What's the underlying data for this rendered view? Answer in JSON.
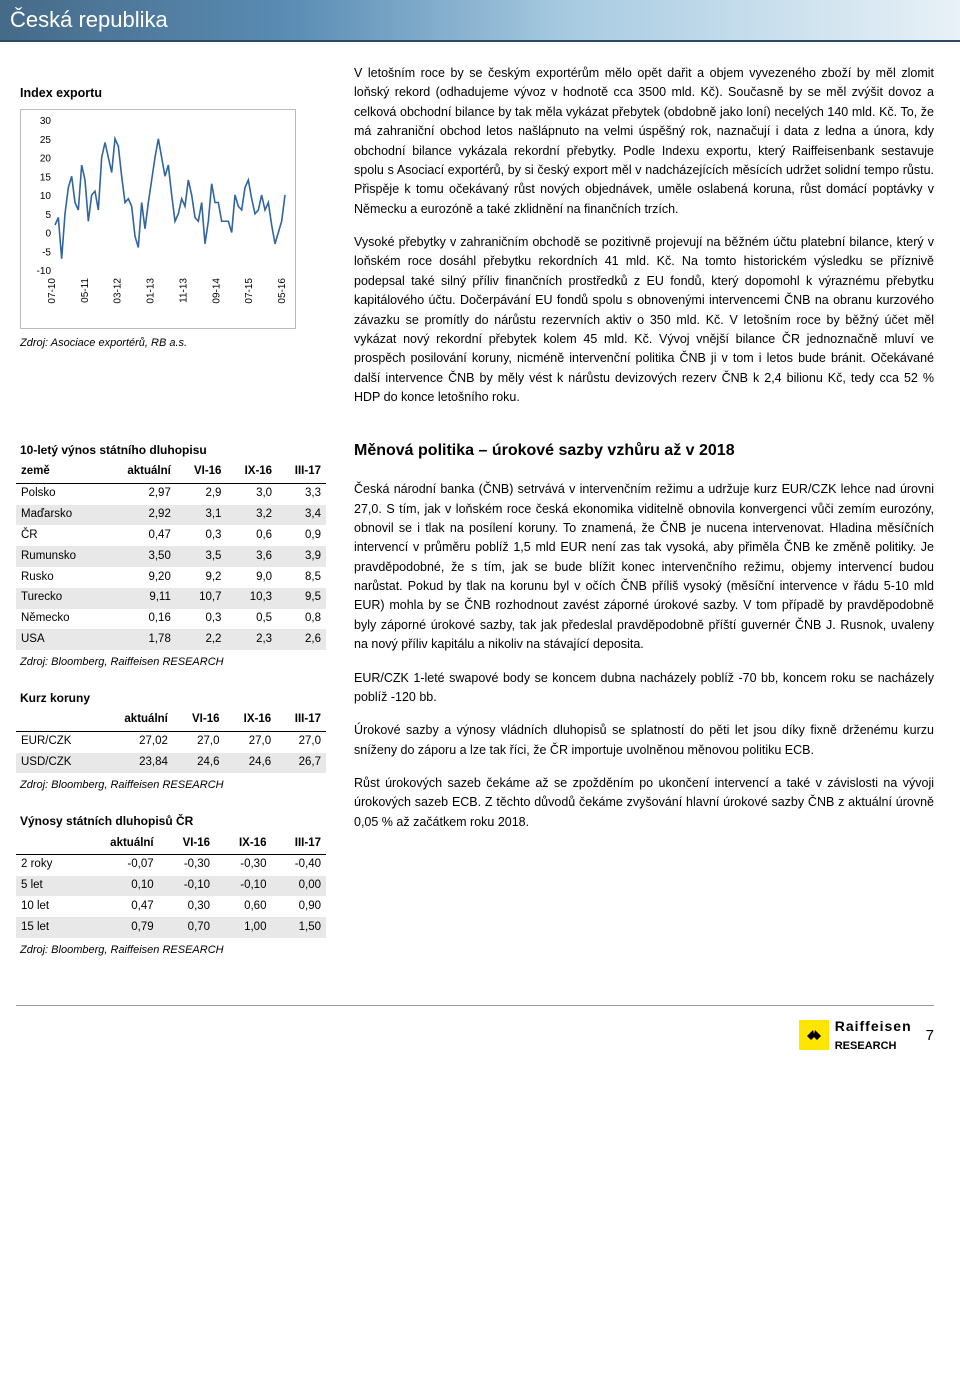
{
  "header": {
    "title": "Česká republika"
  },
  "chart": {
    "title": "Index exportu",
    "type": "line",
    "x_ticks": [
      "07-10",
      "05-11",
      "03-12",
      "01-13",
      "11-13",
      "09-14",
      "07-15",
      "05-16"
    ],
    "ylim": [
      -10,
      30
    ],
    "ytick_labels": [
      "-10",
      "-5",
      "0",
      "5",
      "10",
      "15",
      "20",
      "25",
      "30"
    ],
    "line_color": "#31659c",
    "background": "#ffffff",
    "border_color": "#bbbbbb",
    "source": "Zdroj: Asociace exportérů, RB a.s.",
    "series": [
      2,
      4,
      -7,
      5,
      12,
      15,
      8,
      6,
      18,
      14,
      3,
      10,
      11,
      6,
      20,
      24,
      20,
      16,
      25,
      23,
      15,
      8,
      9,
      7,
      -1,
      -4,
      8,
      1,
      8,
      14,
      20,
      25,
      20,
      15,
      18,
      10,
      3,
      5,
      9,
      7,
      14,
      10,
      4,
      3,
      8,
      -3,
      3,
      13,
      8,
      8,
      3,
      3,
      3,
      0,
      10,
      7,
      6,
      12,
      14,
      9,
      5,
      6,
      10,
      6,
      8,
      2,
      -3,
      0,
      3,
      10
    ]
  },
  "body": {
    "p1": "V letošním roce by se českým exportérům mělo opět dařit a objem vyvezeného zboží by měl zlomit loňský rekord (odhadujeme vývoz v hodnotě cca 3500 mld. Kč). Současně by se měl zvýšit dovoz a celková obchodní bilance by tak měla vykázat přebytek (obdobně jako loní) necelých 140 mld. Kč. To, že má zahraniční obchod letos našlápnuto na velmi úspěšný rok, naznačují i data z ledna a února, kdy obchodní bilance vykázala rekordní přebytky. Podle Indexu exportu, který Raiffeisenbank sestavuje spolu s Asociací exportérů, by si český export měl v nadcházejících měsících udržet solidní tempo růstu. Přispěje k tomu očekávaný růst nových objednávek, uměle oslabená koruna, růst domácí poptávky v Německu a eurozóně a také zklidnění na finančních trzích.",
    "p2": "Vysoké přebytky v zahraničním obchodě se pozitivně projevují na běžném účtu platební bilance, který v loňském roce dosáhl přebytku rekordních 41 mld. Kč. Na tomto historickém výsledku se příznivě podepsal také silný příliv finančních prostředků z EU fondů, který dopomohl k výraznému přebytku kapitálového účtu. Dočerpávání EU fondů spolu s obnovenými intervencemi ČNB na obranu kurzového závazku se promítly do nárůstu rezervních aktiv o 350 mld. Kč. V letošním roce by běžný účet měl vykázat nový rekordní přebytek kolem 45 mld. Kč. Vývoj vnější bilance ČR jednoznačně mluví ve prospěch posilování koruny, nicméně intervenční politika ČNB ji v tom i letos bude bránit. Očekávané další intervence ČNB by měly vést k nárůstu devizových rezerv ČNB k 2,4 bilionu Kč, tedy cca 52 % HDP do konce letošního roku."
  },
  "section2_head": "Měnová politika – úrokové sazby vzhůru až v 2018",
  "body2": {
    "p1": "Česká národní banka (ČNB) setrvává v intervenčním režimu a udržuje kurz EUR/CZK lehce nad úrovni 27,0. S tím, jak v loňském roce česká ekonomika viditelně obnovila konvergenci vůči zemím eurozóny, obnovil se i tlak na posílení koruny. To znamená, že ČNB je nucena intervenovat. Hladina měsíčních intervencí v průměru poblíž 1,5 mld EUR není zas tak vysoká, aby přiměla ČNB ke změně politiky. Je pravděpodobné, že s tím, jak se bude blížit konec intervenčního režimu, objemy intervencí budou narůstat. Pokud by tlak na korunu byl v očích ČNB příliš vysoký (měsíční intervence v řádu 5-10 mld EUR) mohla by se ČNB rozhodnout zavést záporné úrokové sazby. V tom případě by pravděpodobně byly záporné úrokové sazby, tak jak předeslal pravděpodobně příští guvernér ČNB J. Rusnok, uvaleny na nový příliv kapitálu a nikoliv na stávající deposita.",
    "p2": "EUR/CZK 1-leté swapové body se koncem dubna nacházely poblíž -70 bb, koncem roku se nacházely poblíž -120 bb.",
    "p3": "Úrokové sazby a výnosy vládních dluhopisů se splatností do pěti let jsou díky fixně drženému kurzu sníženy do záporu a lze tak říci, že ČR importuje uvolněnou měnovou politiku ECB.",
    "p4": "Růst úrokových sazeb čekáme až se zpožděním po ukončení intervencí a také v závislosti na vývoji úrokových sazeb ECB. Z těchto důvodů čekáme zvyšování hlavní úrokové sazby ČNB z aktuální úrovně 0,05 % až začátkem roku 2018."
  },
  "table1": {
    "title": "10-letý výnos státního dluhopisu",
    "columns": [
      "země",
      "aktuální",
      "VI-16",
      "IX-16",
      "III-17"
    ],
    "rows": [
      {
        "c": [
          "Polsko",
          "2,97",
          "2,9",
          "3,0",
          "3,3"
        ],
        "shade": false
      },
      {
        "c": [
          "Maďarsko",
          "2,92",
          "3,1",
          "3,2",
          "3,4"
        ],
        "shade": true
      },
      {
        "c": [
          "ČR",
          "0,47",
          "0,3",
          "0,6",
          "0,9"
        ],
        "shade": false
      },
      {
        "c": [
          "Rumunsko",
          "3,50",
          "3,5",
          "3,6",
          "3,9"
        ],
        "shade": true
      },
      {
        "c": [
          "Rusko",
          "9,20",
          "9,2",
          "9,0",
          "8,5"
        ],
        "shade": false
      },
      {
        "c": [
          "Turecko",
          "9,11",
          "10,7",
          "10,3",
          "9,5"
        ],
        "shade": true
      },
      {
        "c": [
          "Německo",
          "0,16",
          "0,3",
          "0,5",
          "0,8"
        ],
        "shade": false
      },
      {
        "c": [
          "USA",
          "1,78",
          "2,2",
          "2,3",
          "2,6"
        ],
        "shade": true
      }
    ],
    "source": "Zdroj: Bloomberg, Raiffeisen RESEARCH"
  },
  "table2": {
    "title": "Kurz koruny",
    "columns": [
      "",
      "aktuální",
      "VI-16",
      "IX-16",
      "III-17"
    ],
    "rows": [
      {
        "c": [
          "EUR/CZK",
          "27,02",
          "27,0",
          "27,0",
          "27,0"
        ],
        "shade": false
      },
      {
        "c": [
          "USD/CZK",
          "23,84",
          "24,6",
          "24,6",
          "26,7"
        ],
        "shade": true
      }
    ],
    "source": "Zdroj: Bloomberg, Raiffeisen RESEARCH"
  },
  "table3": {
    "title": "Výnosy státních dluhopisů ČR",
    "columns": [
      "",
      "aktuální",
      "VI-16",
      "IX-16",
      "III-17"
    ],
    "rows": [
      {
        "c": [
          "2 roky",
          "-0,07",
          "-0,30",
          "-0,30",
          "-0,40"
        ],
        "shade": false
      },
      {
        "c": [
          "5 let",
          "0,10",
          "-0,10",
          "-0,10",
          "0,00"
        ],
        "shade": true
      },
      {
        "c": [
          "10 let",
          "0,47",
          "0,30",
          "0,60",
          "0,90"
        ],
        "shade": false
      },
      {
        "c": [
          "15 let",
          "0,79",
          "0,70",
          "1,00",
          "1,50"
        ],
        "shade": true
      }
    ],
    "source": "Zdroj: Bloomberg, Raiffeisen RESEARCH"
  },
  "footer": {
    "brand": "Raiffeisen",
    "sub": "RESEARCH",
    "page": "7",
    "logo_bg": "#ffe600"
  }
}
